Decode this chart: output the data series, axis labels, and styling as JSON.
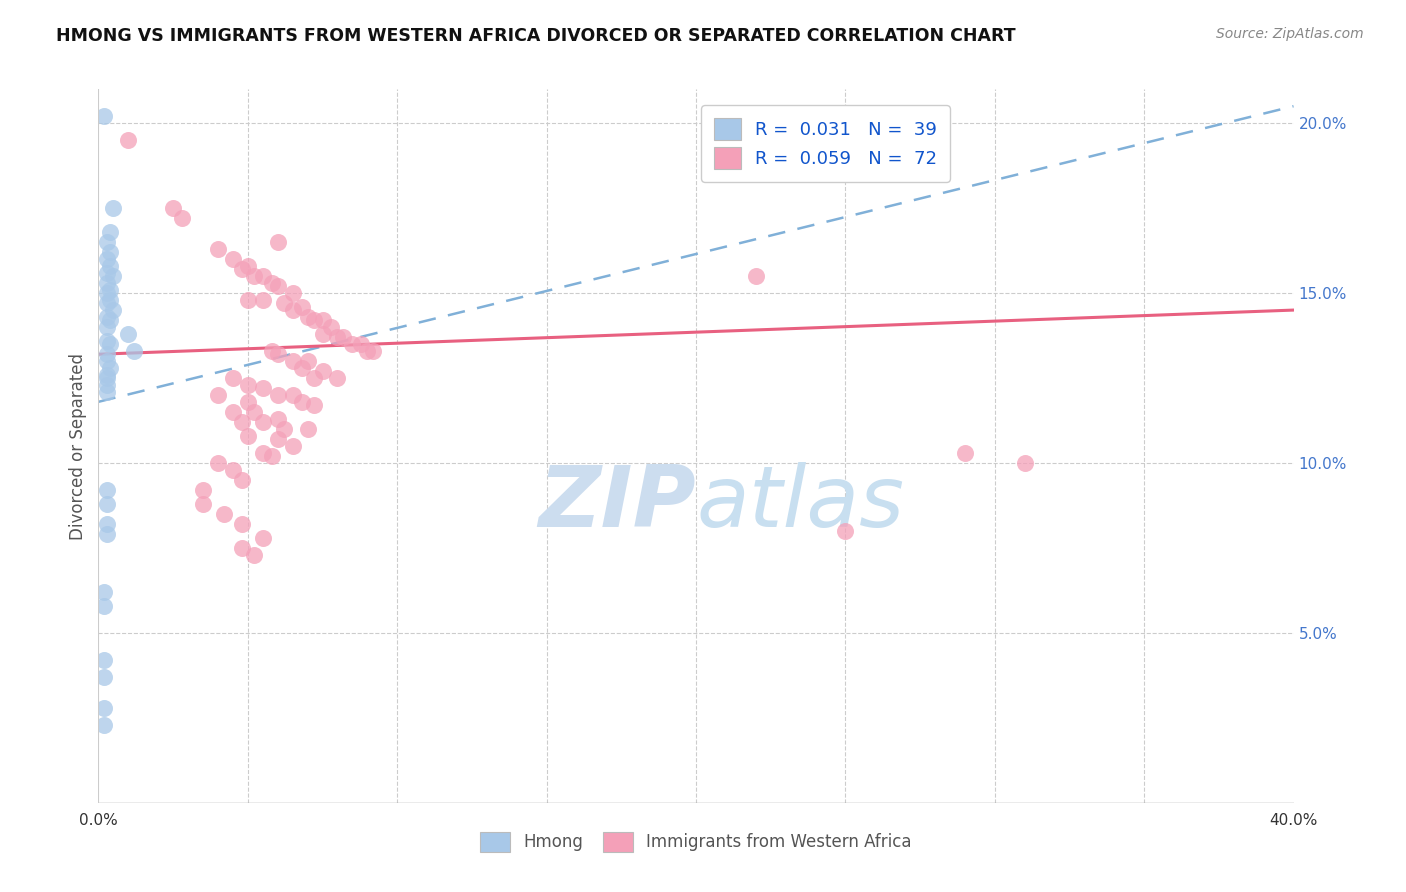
{
  "title": "HMONG VS IMMIGRANTS FROM WESTERN AFRICA DIVORCED OR SEPARATED CORRELATION CHART",
  "source": "Source: ZipAtlas.com",
  "ylabel": "Divorced or Separated",
  "x_min": 0.0,
  "x_max": 0.4,
  "y_min": 0.0,
  "y_max": 0.21,
  "hmong_color": "#a8c8e8",
  "western_africa_color": "#f4a0b8",
  "trend_hmong_color": "#80b0d8",
  "trend_wa_color": "#e86080",
  "watermark_color": "#ccddef",
  "hmong_trend_x0": 0.0,
  "hmong_trend_y0": 0.118,
  "hmong_trend_x1": 0.4,
  "hmong_trend_y1": 0.205,
  "wa_trend_x0": 0.0,
  "wa_trend_y0": 0.132,
  "wa_trend_x1": 0.4,
  "wa_trend_y1": 0.145,
  "hmong_points": [
    [
      0.002,
      0.202
    ],
    [
      0.005,
      0.175
    ],
    [
      0.004,
      0.168
    ],
    [
      0.003,
      0.165
    ],
    [
      0.004,
      0.162
    ],
    [
      0.003,
      0.16
    ],
    [
      0.004,
      0.158
    ],
    [
      0.003,
      0.156
    ],
    [
      0.005,
      0.155
    ],
    [
      0.003,
      0.153
    ],
    [
      0.004,
      0.151
    ],
    [
      0.003,
      0.15
    ],
    [
      0.004,
      0.148
    ],
    [
      0.003,
      0.147
    ],
    [
      0.005,
      0.145
    ],
    [
      0.003,
      0.143
    ],
    [
      0.004,
      0.142
    ],
    [
      0.003,
      0.14
    ],
    [
      0.01,
      0.138
    ],
    [
      0.003,
      0.136
    ],
    [
      0.004,
      0.135
    ],
    [
      0.012,
      0.133
    ],
    [
      0.003,
      0.132
    ],
    [
      0.003,
      0.13
    ],
    [
      0.004,
      0.128
    ],
    [
      0.003,
      0.126
    ],
    [
      0.003,
      0.125
    ],
    [
      0.003,
      0.123
    ],
    [
      0.003,
      0.121
    ],
    [
      0.003,
      0.092
    ],
    [
      0.003,
      0.088
    ],
    [
      0.003,
      0.082
    ],
    [
      0.003,
      0.079
    ],
    [
      0.002,
      0.062
    ],
    [
      0.002,
      0.058
    ],
    [
      0.002,
      0.042
    ],
    [
      0.002,
      0.037
    ],
    [
      0.002,
      0.028
    ],
    [
      0.002,
      0.023
    ]
  ],
  "wa_points": [
    [
      0.01,
      0.195
    ],
    [
      0.025,
      0.175
    ],
    [
      0.028,
      0.172
    ],
    [
      0.06,
      0.165
    ],
    [
      0.04,
      0.163
    ],
    [
      0.045,
      0.16
    ],
    [
      0.05,
      0.158
    ],
    [
      0.048,
      0.157
    ],
    [
      0.052,
      0.155
    ],
    [
      0.055,
      0.155
    ],
    [
      0.058,
      0.153
    ],
    [
      0.06,
      0.152
    ],
    [
      0.065,
      0.15
    ],
    [
      0.055,
      0.148
    ],
    [
      0.05,
      0.148
    ],
    [
      0.062,
      0.147
    ],
    [
      0.068,
      0.146
    ],
    [
      0.065,
      0.145
    ],
    [
      0.07,
      0.143
    ],
    [
      0.072,
      0.142
    ],
    [
      0.075,
      0.142
    ],
    [
      0.078,
      0.14
    ],
    [
      0.075,
      0.138
    ],
    [
      0.08,
      0.137
    ],
    [
      0.082,
      0.137
    ],
    [
      0.085,
      0.135
    ],
    [
      0.088,
      0.135
    ],
    [
      0.09,
      0.133
    ],
    [
      0.092,
      0.133
    ],
    [
      0.058,
      0.133
    ],
    [
      0.06,
      0.132
    ],
    [
      0.065,
      0.13
    ],
    [
      0.07,
      0.13
    ],
    [
      0.068,
      0.128
    ],
    [
      0.075,
      0.127
    ],
    [
      0.072,
      0.125
    ],
    [
      0.08,
      0.125
    ],
    [
      0.045,
      0.125
    ],
    [
      0.05,
      0.123
    ],
    [
      0.055,
      0.122
    ],
    [
      0.06,
      0.12
    ],
    [
      0.065,
      0.12
    ],
    [
      0.04,
      0.12
    ],
    [
      0.05,
      0.118
    ],
    [
      0.068,
      0.118
    ],
    [
      0.072,
      0.117
    ],
    [
      0.045,
      0.115
    ],
    [
      0.052,
      0.115
    ],
    [
      0.06,
      0.113
    ],
    [
      0.055,
      0.112
    ],
    [
      0.048,
      0.112
    ],
    [
      0.062,
      0.11
    ],
    [
      0.07,
      0.11
    ],
    [
      0.05,
      0.108
    ],
    [
      0.06,
      0.107
    ],
    [
      0.065,
      0.105
    ],
    [
      0.055,
      0.103
    ],
    [
      0.058,
      0.102
    ],
    [
      0.04,
      0.1
    ],
    [
      0.045,
      0.098
    ],
    [
      0.048,
      0.095
    ],
    [
      0.035,
      0.092
    ],
    [
      0.035,
      0.088
    ],
    [
      0.042,
      0.085
    ],
    [
      0.048,
      0.082
    ],
    [
      0.055,
      0.078
    ],
    [
      0.048,
      0.075
    ],
    [
      0.052,
      0.073
    ],
    [
      0.22,
      0.155
    ],
    [
      0.25,
      0.08
    ],
    [
      0.29,
      0.103
    ],
    [
      0.31,
      0.1
    ]
  ]
}
